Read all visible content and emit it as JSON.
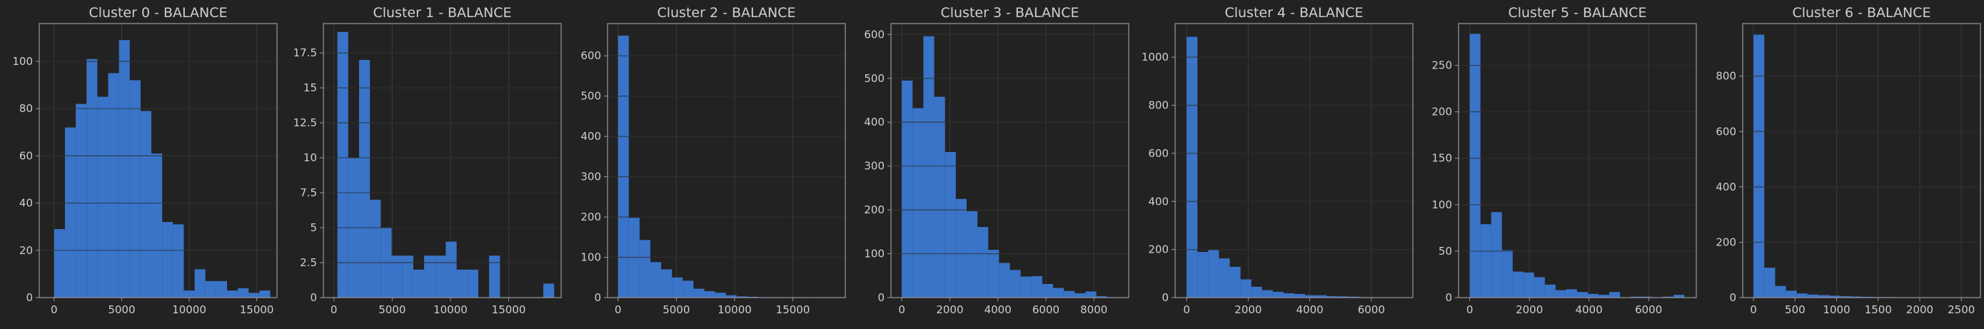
{
  "colors": {
    "background": "#222222",
    "bar": "#3a74c8",
    "grid": "#3a3a3a",
    "spine": "#9a9a9a",
    "text": "#cfcfcf"
  },
  "chart_data": [
    {
      "type": "bar",
      "title": "Cluster 0 - BALANCE",
      "xlabel": "",
      "ylabel": "",
      "xlim": [
        -1100,
        16500
      ],
      "ylim": [
        0,
        116
      ],
      "xticks": [
        0,
        5000,
        10000,
        15000
      ],
      "yticks": [
        0,
        20,
        40,
        60,
        80,
        100
      ],
      "bin_edges": [
        0,
        800,
        1600,
        2400,
        3200,
        4000,
        4800,
        5600,
        6400,
        7200,
        8000,
        8800,
        9600,
        10400,
        11200,
        12000,
        12800,
        13600,
        14400,
        15200,
        16000
      ],
      "values": [
        29,
        72,
        82,
        101,
        85,
        95,
        109,
        92,
        79,
        61,
        32,
        31,
        3,
        12,
        7,
        7,
        3,
        4,
        2,
        3
      ],
      "grid": true
    },
    {
      "type": "bar",
      "title": "Cluster 1 - BALANCE",
      "xlabel": "",
      "ylabel": "",
      "xlim": [
        -900,
        19500
      ],
      "ylim": [
        0,
        19.6
      ],
      "xticks": [
        0,
        5000,
        10000,
        15000
      ],
      "yticks": [
        0.0,
        2.5,
        5.0,
        7.5,
        10.0,
        12.5,
        15.0,
        17.5
      ],
      "bin_edges": [
        300,
        1230,
        2160,
        3090,
        4020,
        4950,
        5880,
        6810,
        7740,
        8670,
        9600,
        10530,
        11460,
        12390,
        13320,
        14250,
        15180,
        16110,
        17040,
        17970,
        18900
      ],
      "values": [
        19,
        10,
        17,
        7,
        5,
        3,
        3,
        2,
        3,
        3,
        4,
        2,
        2,
        0,
        3,
        0,
        0,
        0,
        0,
        1
      ],
      "grid": true
    },
    {
      "type": "bar",
      "title": "Cluster 2 - BALANCE",
      "xlabel": "",
      "ylabel": "",
      "xlim": [
        -900,
        19500
      ],
      "ylim": [
        0,
        680
      ],
      "xticks": [
        0,
        5000,
        10000,
        15000
      ],
      "yticks": [
        0,
        100,
        200,
        300,
        400,
        500,
        600
      ],
      "bin_edges": [
        0,
        925,
        1850,
        2775,
        3700,
        4625,
        5550,
        6475,
        7400,
        8325,
        9250,
        10175,
        11100,
        12025,
        12950,
        13875,
        14800,
        15725,
        16650,
        17575,
        18500
      ],
      "values": [
        650,
        198,
        143,
        88,
        70,
        50,
        42,
        22,
        16,
        12,
        6,
        3,
        2,
        1,
        1,
        0,
        1,
        0,
        0,
        1
      ],
      "grid": true
    },
    {
      "type": "bar",
      "title": "Cluster 3 - BALANCE",
      "xlabel": "",
      "ylabel": "",
      "xlim": [
        -450,
        9450
      ],
      "ylim": [
        0,
        625
      ],
      "xticks": [
        0,
        2000,
        4000,
        6000,
        8000
      ],
      "yticks": [
        0,
        100,
        200,
        300,
        400,
        500,
        600
      ],
      "bin_edges": [
        0,
        450,
        900,
        1350,
        1800,
        2250,
        2700,
        3150,
        3600,
        4050,
        4500,
        4950,
        5400,
        5850,
        6300,
        6750,
        7200,
        7650,
        8100,
        8550,
        9000
      ],
      "values": [
        495,
        432,
        596,
        458,
        332,
        225,
        197,
        161,
        109,
        79,
        63,
        48,
        49,
        31,
        22,
        15,
        10,
        14,
        3,
        1
      ],
      "grid": true
    },
    {
      "type": "bar",
      "title": "Cluster 4 - BALANCE",
      "xlabel": "",
      "ylabel": "",
      "xlim": [
        -375,
        7350
      ],
      "ylim": [
        0,
        1140
      ],
      "xticks": [
        0,
        2000,
        4000,
        6000
      ],
      "yticks": [
        0,
        200,
        400,
        600,
        800,
        1000
      ],
      "bin_edges": [
        0,
        350,
        700,
        1050,
        1400,
        1750,
        2100,
        2450,
        2800,
        3150,
        3500,
        3850,
        4200,
        4550,
        4900,
        5250,
        5600,
        5950,
        6300,
        6650,
        7000
      ],
      "values": [
        1085,
        190,
        198,
        163,
        128,
        76,
        45,
        31,
        24,
        18,
        15,
        10,
        10,
        6,
        5,
        4,
        2,
        1,
        1,
        1
      ],
      "grid": true
    },
    {
      "type": "bar",
      "title": "Cluster 5 - BALANCE",
      "xlabel": "",
      "ylabel": "",
      "xlim": [
        -375,
        7600
      ],
      "ylim": [
        0,
        295
      ],
      "xticks": [
        0,
        2000,
        4000,
        6000
      ],
      "yticks": [
        0,
        50,
        100,
        150,
        200,
        250
      ],
      "bin_edges": [
        0,
        360,
        720,
        1080,
        1440,
        1800,
        2160,
        2520,
        2880,
        3240,
        3600,
        3960,
        4320,
        4680,
        5040,
        5400,
        5760,
        6120,
        6480,
        6840,
        7200
      ],
      "values": [
        284,
        79,
        92,
        51,
        28,
        27,
        22,
        14,
        8,
        9,
        6,
        4,
        3,
        6,
        0,
        1,
        1,
        0,
        1,
        3
      ],
      "grid": true
    },
    {
      "type": "bar",
      "title": "Cluster 6 - BALANCE",
      "xlabel": "",
      "ylabel": "",
      "xlim": [
        -130,
        2730
      ],
      "ylim": [
        0,
        990
      ],
      "xticks": [
        0,
        500,
        1000,
        1500,
        2000,
        2500
      ],
      "yticks": [
        0,
        200,
        400,
        600,
        800
      ],
      "bin_edges": [
        0,
        130,
        260,
        390,
        520,
        650,
        780,
        910,
        1040,
        1170,
        1300,
        1430,
        1560,
        1690,
        1820,
        1950,
        2080,
        2210,
        2340,
        2470,
        2600
      ],
      "values": [
        950,
        108,
        42,
        25,
        15,
        11,
        9,
        7,
        5,
        4,
        3,
        2,
        2,
        1,
        1,
        1,
        1,
        0,
        0,
        1
      ],
      "grid": true
    }
  ]
}
